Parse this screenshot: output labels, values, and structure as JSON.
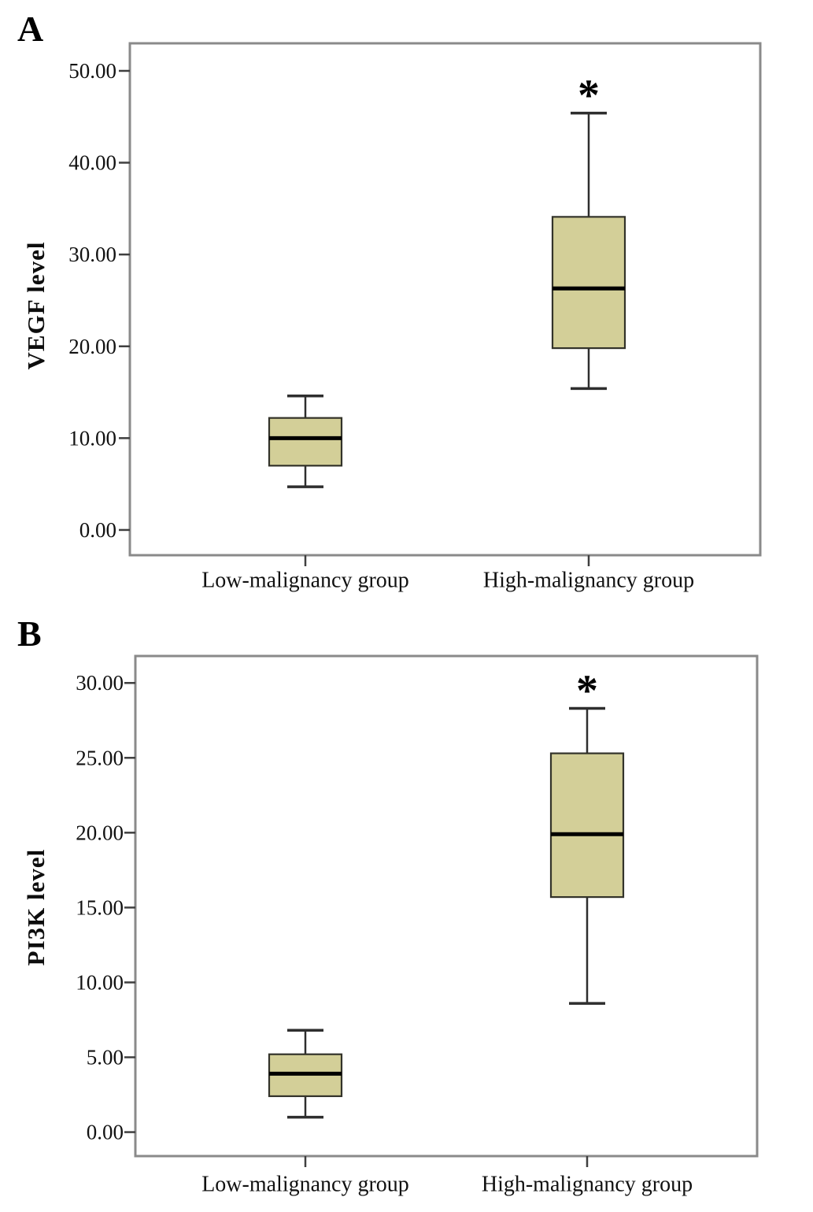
{
  "figure": {
    "description_panels": [
      "A",
      "B"
    ]
  },
  "style": {
    "background": "#ffffff",
    "box_fill": "#d3cf98",
    "box_border": "#33332a",
    "median_color": "#000000",
    "whisker_color": "#2e2e2e",
    "frame_color": "#8a8a8a",
    "tick_color": "#3f3f3f",
    "text_color": "#111111"
  },
  "chart_data": [
    {
      "type": "boxplot",
      "panel_label": "A",
      "title": "",
      "xlabel": "",
      "ylabel": "VEGF level",
      "categories": [
        "Low-malignancy group",
        "High-malignancy group"
      ],
      "ylim": [
        -2.75,
        53
      ],
      "grid": false,
      "legend": "none",
      "yticks": [
        {
          "value": 0,
          "label": "0.00"
        },
        {
          "value": 10,
          "label": "10.00"
        },
        {
          "value": 20,
          "label": "20.00"
        },
        {
          "value": 30,
          "label": "30.00"
        },
        {
          "value": 40,
          "label": "40.00"
        },
        {
          "value": 50,
          "label": "50.00"
        }
      ],
      "series": [
        {
          "name": "Low-malignancy group",
          "min": 4.7,
          "q1": 7.0,
          "median": 10.0,
          "q3": 12.2,
          "max": 14.6,
          "annotation": ""
        },
        {
          "name": "High-malignancy group",
          "min": 15.4,
          "q1": 19.8,
          "median": 26.3,
          "q3": 34.1,
          "max": 45.4,
          "annotation": "*"
        }
      ]
    },
    {
      "type": "boxplot",
      "panel_label": "B",
      "title": "",
      "xlabel": "",
      "ylabel": "PI3K level",
      "categories": [
        "Low-malignancy group",
        "High-malignancy group"
      ],
      "ylim": [
        -1.6,
        31.8
      ],
      "grid": false,
      "legend": "none",
      "yticks": [
        {
          "value": 0,
          "label": "0.00"
        },
        {
          "value": 5,
          "label": "5.00"
        },
        {
          "value": 10,
          "label": "10.00"
        },
        {
          "value": 15,
          "label": "15.00"
        },
        {
          "value": 20,
          "label": "20.00"
        },
        {
          "value": 25,
          "label": "25.00"
        },
        {
          "value": 30,
          "label": "30.00"
        }
      ],
      "series": [
        {
          "name": "Low-malignancy group",
          "min": 1.0,
          "q1": 2.4,
          "median": 3.9,
          "q3": 5.2,
          "max": 6.8,
          "annotation": ""
        },
        {
          "name": "High-malignancy group",
          "min": 8.6,
          "q1": 15.7,
          "median": 19.9,
          "q3": 25.3,
          "max": 28.3,
          "annotation": "*"
        }
      ]
    }
  ]
}
